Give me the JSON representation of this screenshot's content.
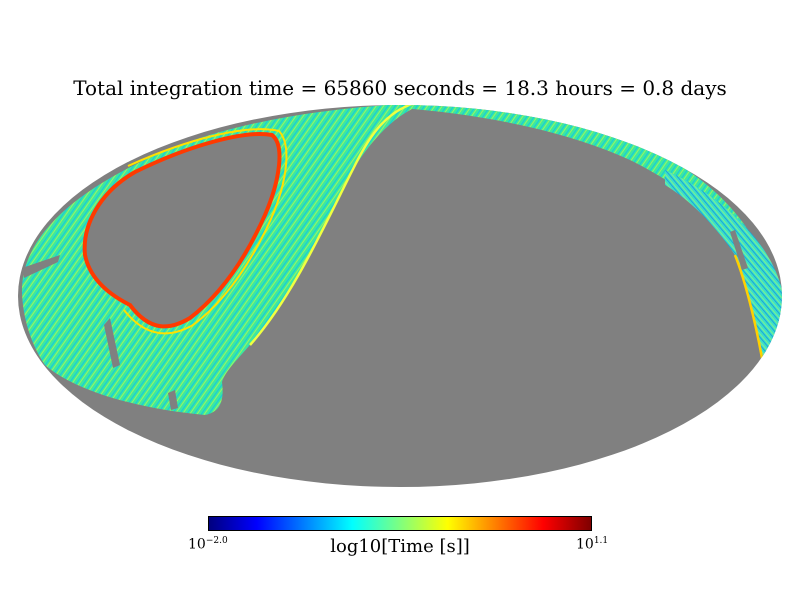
{
  "chart_data": {
    "type": "heatmap",
    "projection": "mollweide",
    "title": "Total integration time = 65860 seconds = 18.3 hours = 0.8 days",
    "colormap": "jet",
    "unobserved_color": "#808080",
    "colorbar": {
      "label": "log10[Time [s]]",
      "min_base": "10",
      "min_exp": "−2.0",
      "max_base": "10",
      "max_exp": "1.1",
      "range": [
        -2.0,
        1.1
      ],
      "colors": [
        "#00007f",
        "#0000ff",
        "#007fff",
        "#00ffff",
        "#7fff7f",
        "#ffff00",
        "#ff7f00",
        "#ff0000",
        "#7f0000"
      ]
    },
    "regions": [
      {
        "name": "observed-band-left",
        "log10_time_typical": -0.3,
        "color": "#39e6a5"
      },
      {
        "name": "observed-band-right",
        "log10_time_typical": -0.6,
        "color": "#29c8d8"
      },
      {
        "name": "hole-rim",
        "log10_time_typical": 0.9,
        "color": "#ff3a00"
      }
    ]
  }
}
